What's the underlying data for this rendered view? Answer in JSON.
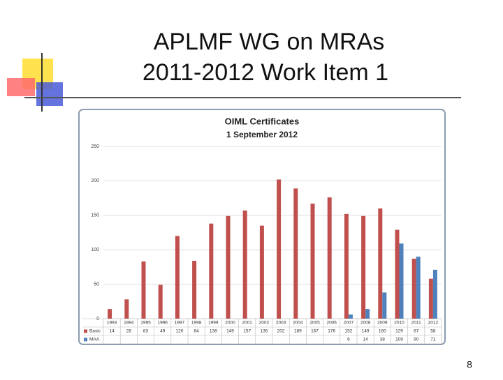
{
  "slide": {
    "title_lines": [
      "APLMF WG on MRAs",
      "2011-2012 Work Item 1"
    ],
    "page_number": 8
  },
  "chart_data": {
    "type": "bar",
    "title": "OIML Certificates",
    "subtitle": "1 September 2012",
    "categories": [
      "1993",
      "1994",
      "1995",
      "1996",
      "1997",
      "1998",
      "1999",
      "2000",
      "2001",
      "2002",
      "2003",
      "2004",
      "2005",
      "2006",
      "2007",
      "2008",
      "2009",
      "2010",
      "2011",
      "2012"
    ],
    "series": [
      {
        "name": "Basic",
        "color": "#c0504d",
        "values": [
          14,
          28,
          83,
          49,
          120,
          84,
          138,
          149,
          157,
          135,
          202,
          189,
          167,
          176,
          152,
          149,
          160,
          129,
          87,
          58
        ]
      },
      {
        "name": "MAA",
        "color": "#4f81bd",
        "values": [
          null,
          null,
          null,
          null,
          null,
          null,
          null,
          null,
          null,
          null,
          null,
          null,
          null,
          null,
          6,
          14,
          38,
          109,
          90,
          71
        ]
      }
    ],
    "ylim": [
      0,
      250
    ],
    "yticks": [
      0,
      50,
      100,
      150,
      200,
      250
    ],
    "grid": true
  }
}
